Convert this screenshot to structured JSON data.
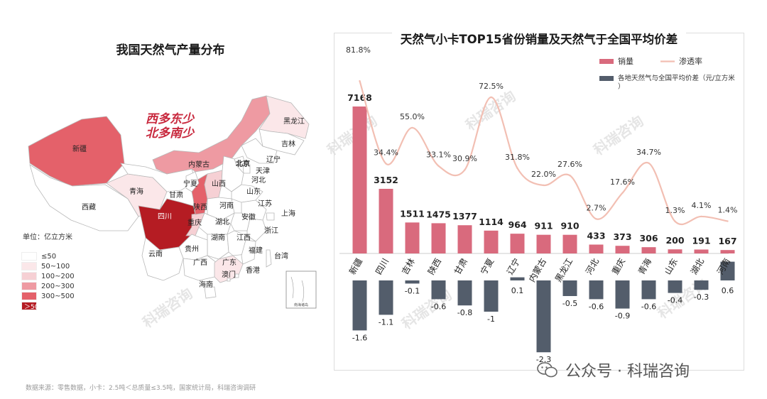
{
  "left": {
    "title": "我国天然气产量分布",
    "slogan_line1": "西多东少",
    "slogan_line2": "北多南少",
    "unit": "单位：亿立方米",
    "legend": [
      {
        "label": "≤50",
        "color": "#ffffff"
      },
      {
        "label": "50~100",
        "color": "#fbe7e9"
      },
      {
        "label": "100~200",
        "color": "#f6d0d4"
      },
      {
        "label": "200~300",
        "color": "#ee9aa2"
      },
      {
        "label": "300~500",
        "color": "#e4616a"
      },
      {
        "label": "＞500",
        "color": "#b51c23"
      }
    ],
    "provinces": [
      {
        "name": "新疆",
        "fill": "#e4616a"
      },
      {
        "name": "西藏",
        "fill": "#ffffff"
      },
      {
        "name": "青海",
        "fill": "#fbe7e9"
      },
      {
        "name": "甘肃",
        "fill": "#ffffff"
      },
      {
        "name": "内蒙古",
        "fill": "#ee9aa2"
      },
      {
        "name": "四川",
        "fill": "#b51c23"
      },
      {
        "name": "重庆",
        "fill": "#f6d0d4"
      },
      {
        "name": "陕西",
        "fill": "#e4616a"
      },
      {
        "name": "宁夏",
        "fill": "#ffffff"
      },
      {
        "name": "山西",
        "fill": "#f6d0d4"
      },
      {
        "name": "黑龙江",
        "fill": "#fbe7e9"
      },
      {
        "name": "吉林",
        "fill": "#ffffff"
      },
      {
        "name": "辽宁",
        "fill": "#ffffff"
      },
      {
        "name": "北京",
        "fill": "#ffffff"
      },
      {
        "name": "天津",
        "fill": "#ffffff"
      },
      {
        "name": "河北",
        "fill": "#ffffff"
      },
      {
        "name": "山东",
        "fill": "#ffffff"
      },
      {
        "name": "河南",
        "fill": "#ffffff"
      },
      {
        "name": "江苏",
        "fill": "#ffffff"
      },
      {
        "name": "安徽",
        "fill": "#ffffff"
      },
      {
        "name": "上海",
        "fill": "#ffffff"
      },
      {
        "name": "湖北",
        "fill": "#ffffff"
      },
      {
        "name": "浙江",
        "fill": "#ffffff"
      },
      {
        "name": "湖南",
        "fill": "#ffffff"
      },
      {
        "name": "江西",
        "fill": "#ffffff"
      },
      {
        "name": "贵州",
        "fill": "#ffffff"
      },
      {
        "name": "云南",
        "fill": "#ffffff"
      },
      {
        "name": "广西",
        "fill": "#ffffff"
      },
      {
        "name": "广东",
        "fill": "#fbe7e9"
      },
      {
        "name": "福建",
        "fill": "#ffffff"
      },
      {
        "name": "台湾",
        "fill": "#ffffff"
      },
      {
        "name": "香港",
        "fill": "#ffffff"
      },
      {
        "name": "澳门",
        "fill": "#ffffff"
      },
      {
        "name": "海南",
        "fill": "#ffffff"
      }
    ],
    "inset_label": "南海诸岛"
  },
  "source": "数据来源：零售数据，小卡：2.5吨＜总质量≤3.5吨，国家统计局，科瑞咨询调研",
  "watermark": "科瑞咨询",
  "wechat": "公众号 · 科瑞咨询",
  "colors": {
    "bar": "#d96a7d",
    "line": "#f2bfb3",
    "diff": "#535d6b"
  },
  "chart_data": {
    "type": "bar",
    "title": "天然气小卡TOP15省份销量及天然气于全国平均价差",
    "categories": [
      "新疆",
      "四川",
      "吉林",
      "陕西",
      "甘肃",
      "宁夏",
      "辽宁",
      "内蒙古",
      "黑龙江",
      "河北",
      "重庆",
      "青海",
      "山东",
      "湖北",
      "河南"
    ],
    "series": [
      {
        "name": "销量",
        "type": "bar",
        "values": [
          7168,
          3152,
          1511,
          1475,
          1377,
          1114,
          964,
          911,
          910,
          433,
          373,
          306,
          200,
          191,
          167
        ]
      },
      {
        "name": "渗透率",
        "type": "line",
        "values": [
          81.8,
          34.4,
          55.0,
          33.1,
          30.9,
          72.5,
          31.8,
          22.0,
          27.6,
          2.7,
          17.6,
          34.7,
          1.3,
          4.1,
          1.4
        ],
        "labels": [
          "81.8%",
          "34.4%",
          "55.0%",
          "33.1%",
          "30.9%",
          "72.5%",
          "31.8%",
          "22.0%",
          "27.6%",
          "2.7%",
          "17.6%",
          "34.7%",
          "1.3%",
          "4.1%",
          "1.4%"
        ]
      },
      {
        "name": "各地天然气与全国平均价差（元/立方米）",
        "type": "bar",
        "values": [
          -1.6,
          -1.1,
          -0.1,
          -0.6,
          -0.8,
          -1.0,
          0.1,
          -2.3,
          -0.5,
          -0.6,
          -0.9,
          -0.6,
          -0.4,
          -0.3,
          0.6
        ]
      }
    ],
    "legend": [
      "销量",
      "渗透率",
      "各地天然气与全国平均价差（元/立方米）"
    ],
    "legend_position": "top-right",
    "grid": false
  }
}
